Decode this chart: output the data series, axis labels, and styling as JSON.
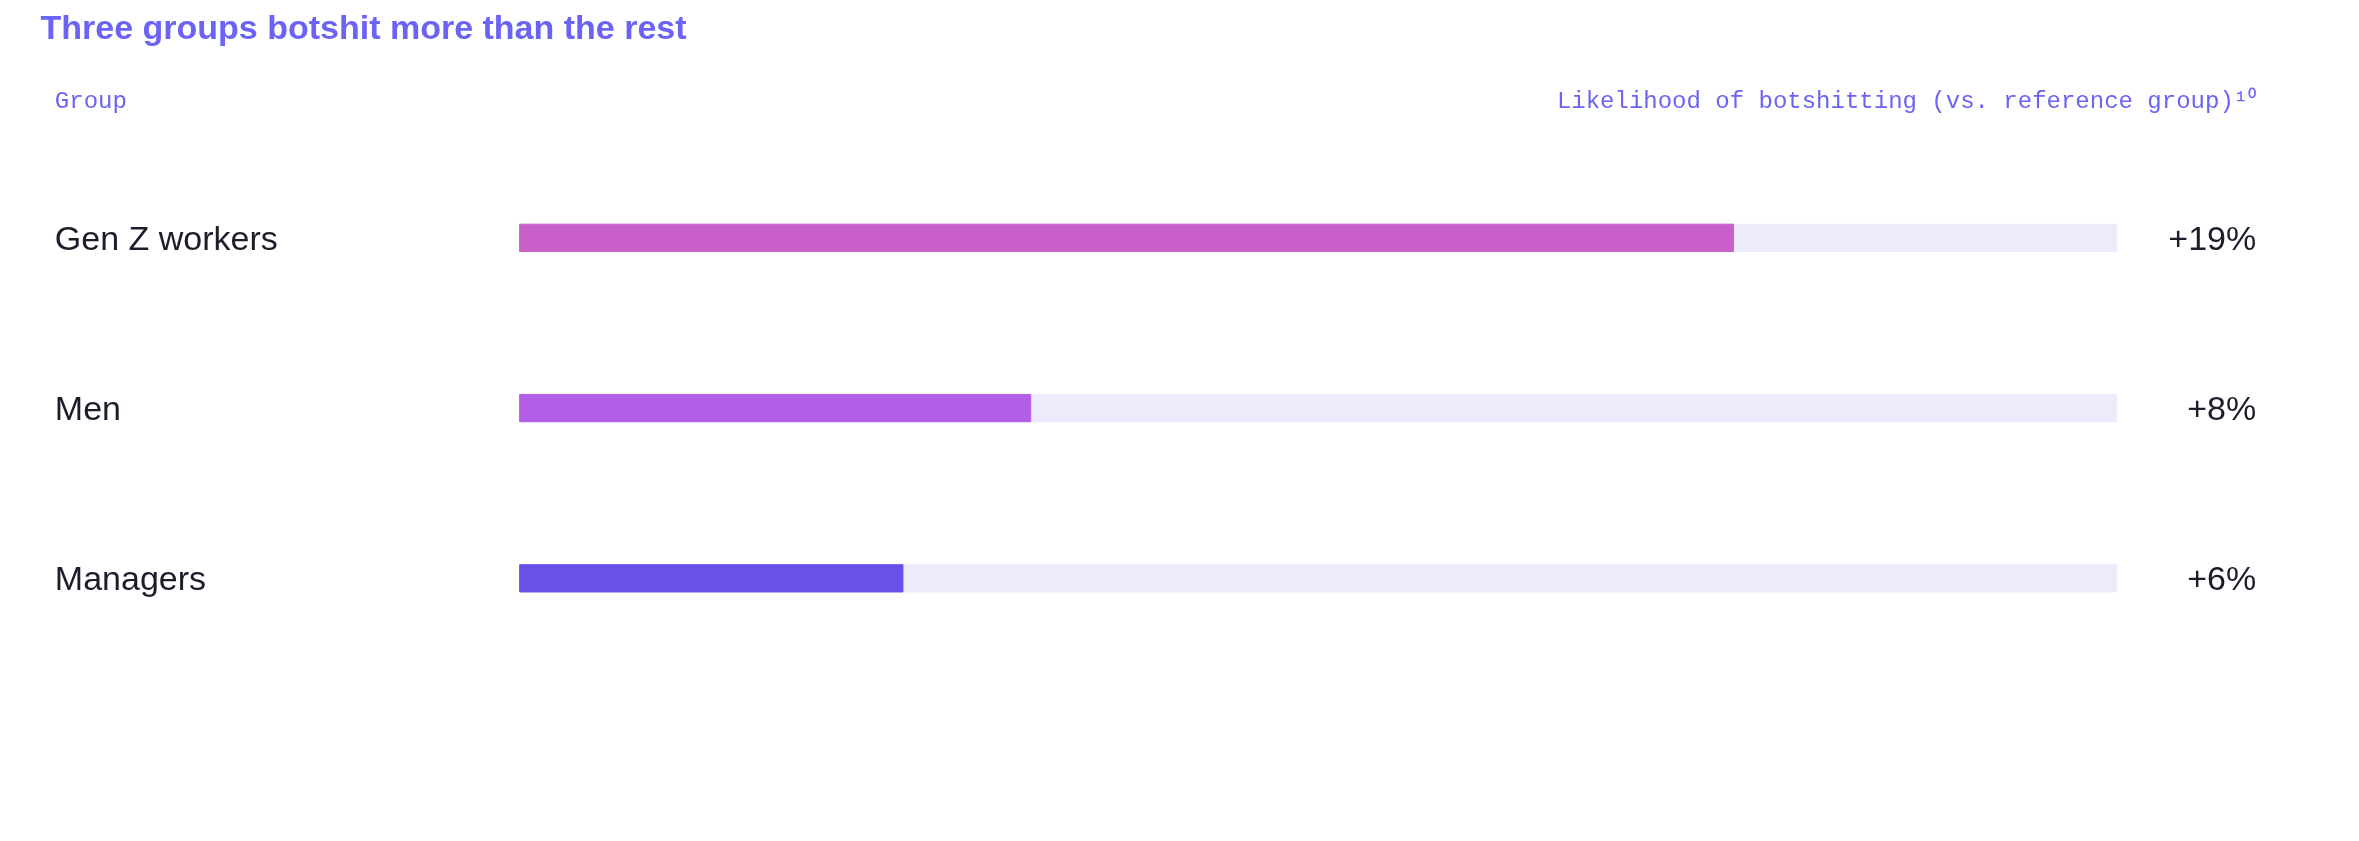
{
  "chart_data": {
    "type": "bar",
    "orientation": "horizontal",
    "title": "Three groups botshit more than the rest",
    "ylabel": "Group",
    "xlabel": "Likelihood of botshitting (vs. reference group)¹⁰",
    "categories": [
      "Gen Z workers",
      "Men",
      "Managers"
    ],
    "values": [
      19,
      8,
      6
    ],
    "value_labels": [
      "+19%",
      "+8%",
      "+6%"
    ],
    "colors": [
      "#c95fc8",
      "#b35ee6",
      "#6a4fe8"
    ],
    "xlim": [
      0,
      25
    ],
    "tick_labels": false
  }
}
